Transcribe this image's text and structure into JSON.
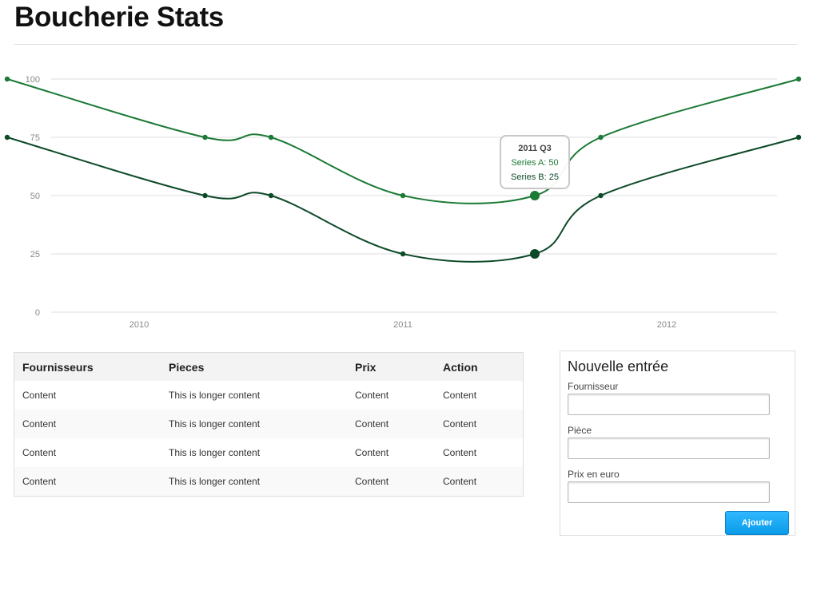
{
  "page": {
    "title": "Boucherie Stats"
  },
  "chart_data": {
    "type": "line",
    "x_ticks": [
      "2010",
      "2011",
      "2012"
    ],
    "y_ticks": [
      "0",
      "25",
      "50",
      "75",
      "100"
    ],
    "ylim": [
      0,
      100
    ],
    "series": [
      {
        "name": "Series A",
        "color": "#1b7a35",
        "points": [
          {
            "x": "2009 Q3",
            "y": 100
          },
          {
            "x": "2010 Q2",
            "y": 75
          },
          {
            "x": "2010 Q3",
            "y": 75
          },
          {
            "x": "2011 Q1",
            "y": 50
          },
          {
            "x": "2011 Q3",
            "y": 50
          },
          {
            "x": "2011 Q4",
            "y": 75
          },
          {
            "x": "2012 Q3",
            "y": 100
          }
        ]
      },
      {
        "name": "Series B",
        "color": "#0d4a28",
        "points": [
          {
            "x": "2009 Q3",
            "y": 75
          },
          {
            "x": "2010 Q2",
            "y": 50
          },
          {
            "x": "2010 Q3",
            "y": 50
          },
          {
            "x": "2011 Q1",
            "y": 25
          },
          {
            "x": "2011 Q3",
            "y": 25
          },
          {
            "x": "2011 Q4",
            "y": 50
          },
          {
            "x": "2012 Q3",
            "y": 75
          }
        ]
      }
    ],
    "tooltip": {
      "title": "2011 Q3",
      "lines": [
        "Series A: 50",
        "Series B: 25"
      ]
    }
  },
  "table": {
    "headers": [
      "Fournisseurs",
      "Pieces",
      "Prix",
      "Action"
    ],
    "rows": [
      [
        "Content",
        "This is longer content",
        "Content",
        "Content"
      ],
      [
        "Content",
        "This is longer content",
        "Content",
        "Content"
      ],
      [
        "Content",
        "This is longer content",
        "Content",
        "Content"
      ],
      [
        "Content",
        "This is longer content",
        "Content",
        "Content"
      ]
    ]
  },
  "form": {
    "title": "Nouvelle entrée",
    "fournisseur_label": "Fournisseur",
    "fournisseur_value": "",
    "piece_label": "Pièce",
    "piece_value": "",
    "prix_label": "Prix en euro",
    "prix_value": "",
    "submit_label": "Ajouter"
  }
}
